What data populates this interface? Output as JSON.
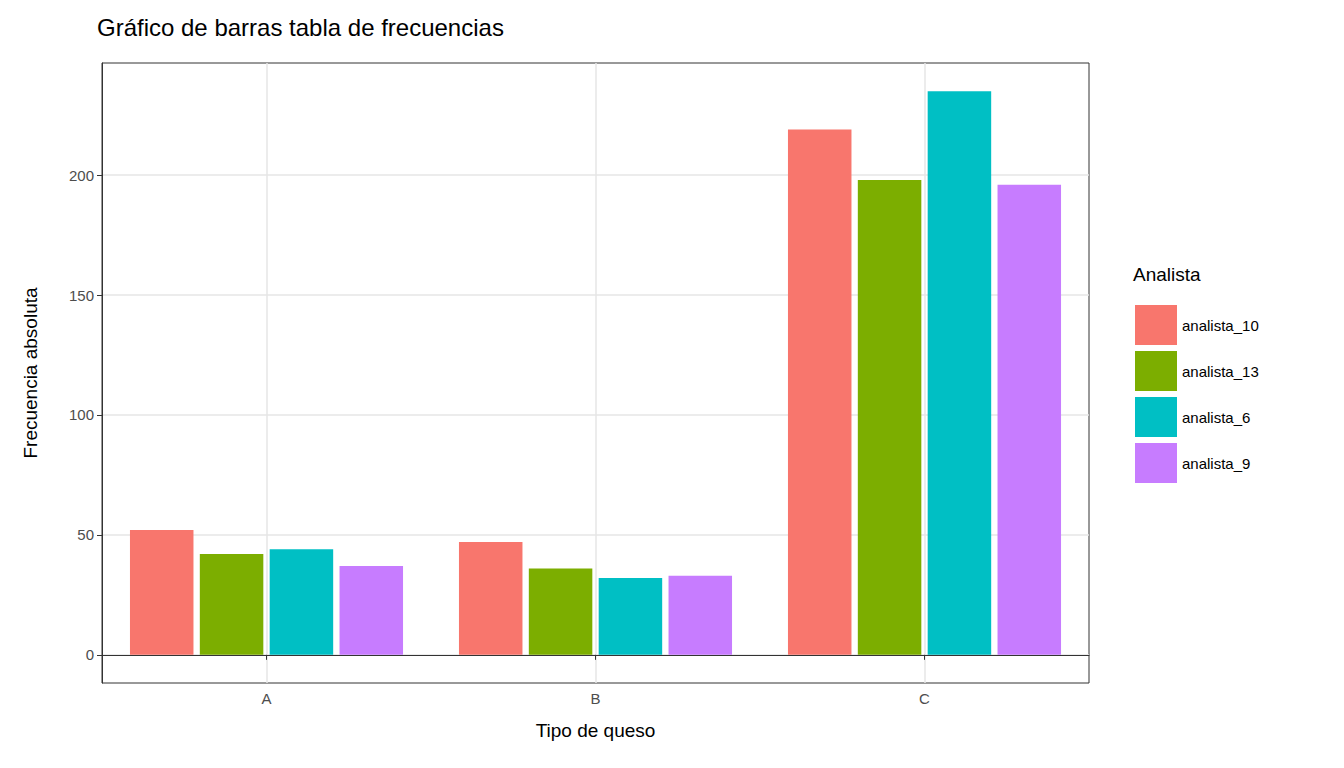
{
  "chart_data": {
    "type": "bar",
    "title": "Gráfico de barras tabla de frecuencias",
    "x_label": "Tipo de queso",
    "y_label": "Frecuencia absoluta",
    "legend_title": "Analista",
    "categories": [
      "A",
      "B",
      "C"
    ],
    "series": [
      {
        "name": "analista_10",
        "color": "#F8766D",
        "values": [
          52,
          47,
          219
        ]
      },
      {
        "name": "analista_13",
        "color": "#7CAE00",
        "values": [
          42,
          36,
          198
        ]
      },
      {
        "name": "analista_6",
        "color": "#00BFC4",
        "values": [
          44,
          32,
          235
        ]
      },
      {
        "name": "analista_9",
        "color": "#C77CFF",
        "values": [
          37,
          33,
          196
        ]
      }
    ],
    "ylim": [
      -11.75,
      246.75
    ],
    "yticks": [
      0,
      50,
      100,
      150,
      200
    ],
    "grid": true,
    "legend": "right"
  }
}
